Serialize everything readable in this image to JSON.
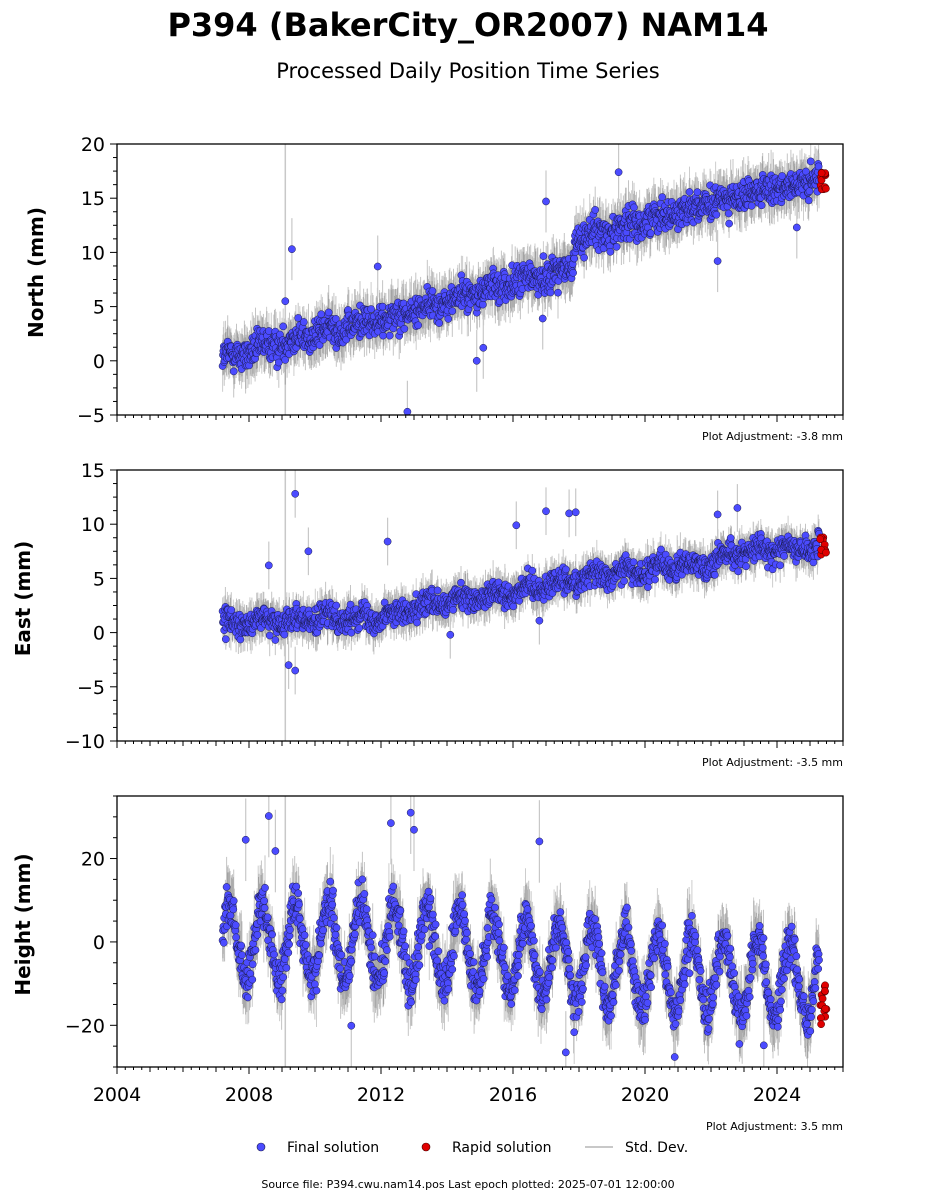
{
  "header": {
    "title": "P394 (BakerCity_OR2007) NAM14",
    "subtitle": "Processed Daily Position Time Series"
  },
  "footer": {
    "source": "Source file: P394.cwu.nam14.pos  Last epoch plotted: 2025-07-01 12:00:00"
  },
  "legend": {
    "final_label": "Final solution",
    "rapid_label": "Rapid solution",
    "std_label": "Std. Dev."
  },
  "colors": {
    "final": "#4b4bff",
    "final_edge": "#1a1a4a",
    "rapid": "#e00000",
    "std": "#c8c8c8",
    "std_dark": "#555555",
    "axis": "#000000"
  },
  "chart_data": [
    {
      "type": "scatter",
      "ylabel": "North (mm)",
      "adjustment": "Plot Adjustment: -3.8 mm",
      "xlim": [
        2004,
        2026
      ],
      "ylim": [
        -5,
        20
      ],
      "yticks": [
        -5,
        0,
        5,
        10,
        15,
        20
      ],
      "xticks": [
        2004,
        2008,
        2012,
        2016,
        2020,
        2024
      ],
      "show_xtick_labels": false,
      "series": [
        {
          "name": "Final solution",
          "trend": [
            [
              2007.2,
              0.2
            ],
            [
              2010.0,
              2.5
            ],
            [
              2012.0,
              3.8
            ],
            [
              2014.0,
              5.5
            ],
            [
              2016.0,
              7.2
            ],
            [
              2017.8,
              8.5
            ],
            [
              2017.9,
              11.2
            ],
            [
              2019.5,
              12.5
            ],
            [
              2021.0,
              13.8
            ],
            [
              2023.0,
              15.2
            ],
            [
              2025.4,
              16.8
            ]
          ],
          "scatter_sd": 1.3,
          "season_amp": 0.3,
          "outliers": [
            [
              2009.3,
              10.3
            ],
            [
              2012.8,
              -4.7
            ],
            [
              2017.0,
              14.7
            ],
            [
              2019.2,
              17.4
            ],
            [
              2009.1,
              5.5
            ],
            [
              2015.1,
              1.2
            ],
            [
              2022.2,
              9.2
            ],
            [
              2024.6,
              12.3
            ],
            [
              2014.9,
              0.0
            ],
            [
              2011.9,
              8.7
            ],
            [
              2016.9,
              3.9
            ]
          ]
        },
        {
          "name": "Rapid solution",
          "x_range": [
            2025.3,
            2025.5
          ],
          "y_range": [
            15.8,
            17.4
          ]
        }
      ]
    },
    {
      "type": "scatter",
      "ylabel": "East (mm)",
      "adjustment": "Plot Adjustment: -3.5 mm",
      "xlim": [
        2004,
        2026
      ],
      "ylim": [
        -10,
        15
      ],
      "yticks": [
        -10,
        -5,
        0,
        5,
        10,
        15
      ],
      "xticks": [
        2004,
        2008,
        2012,
        2016,
        2020,
        2024
      ],
      "show_xtick_labels": false,
      "series": [
        {
          "name": "Final solution",
          "trend": [
            [
              2007.2,
              0.7
            ],
            [
              2009.0,
              1.2
            ],
            [
              2012.0,
              1.5
            ],
            [
              2014.0,
              2.8
            ],
            [
              2016.0,
              3.8
            ],
            [
              2018.0,
              5.0
            ],
            [
              2020.0,
              5.8
            ],
            [
              2022.0,
              6.5
            ],
            [
              2023.0,
              7.5
            ],
            [
              2025.4,
              8.0
            ]
          ],
          "scatter_sd": 1.0,
          "season_amp": 0.4,
          "outliers": [
            [
              2009.4,
              12.8
            ],
            [
              2009.4,
              -3.5
            ],
            [
              2009.2,
              -3.0
            ],
            [
              2017.0,
              11.2
            ],
            [
              2017.7,
              11.0
            ],
            [
              2017.9,
              11.1
            ],
            [
              2012.2,
              8.4
            ],
            [
              2016.1,
              9.9
            ],
            [
              2022.2,
              10.9
            ],
            [
              2022.8,
              11.5
            ],
            [
              2016.8,
              1.1
            ],
            [
              2014.1,
              -0.2
            ],
            [
              2009.8,
              7.5
            ],
            [
              2008.6,
              6.2
            ]
          ]
        },
        {
          "name": "Rapid solution",
          "x_range": [
            2025.3,
            2025.5
          ],
          "y_range": [
            7.2,
            8.8
          ]
        }
      ]
    },
    {
      "type": "scatter",
      "ylabel": "Height (mm)",
      "adjustment": "Plot Adjustment: 3.5 mm",
      "xlim": [
        2004,
        2026
      ],
      "ylim": [
        -30,
        35
      ],
      "yticks": [
        -20,
        0,
        20
      ],
      "xticks": [
        2004,
        2008,
        2012,
        2016,
        2020,
        2024
      ],
      "xtick_labels": [
        "2004",
        "2008",
        "2012",
        "2016",
        "2020",
        "2024"
      ],
      "show_xtick_labels": true,
      "series": [
        {
          "name": "Final solution",
          "trend": [
            [
              2007.2,
              0.0
            ],
            [
              2012.0,
              0.0
            ],
            [
              2016.0,
              -3.0
            ],
            [
              2020.0,
              -7.0
            ],
            [
              2025.4,
              -10.0
            ]
          ],
          "scatter_sd": 4.5,
          "season_amp": 9.0,
          "outliers": [
            [
              2008.6,
              30.2
            ],
            [
              2012.3,
              28.5
            ],
            [
              2012.9,
              31.0
            ],
            [
              2013.0,
              26.9
            ],
            [
              2008.8,
              21.8
            ],
            [
              2007.9,
              24.5
            ],
            [
              2016.8,
              24.1
            ],
            [
              2020.9,
              -27.6
            ],
            [
              2017.6,
              -26.5
            ],
            [
              2023.6,
              -24.8
            ],
            [
              2011.1,
              -20.1
            ]
          ]
        },
        {
          "name": "Rapid solution",
          "x_range": [
            2025.3,
            2025.5
          ],
          "y_range": [
            -20.0,
            -10.0
          ]
        }
      ]
    }
  ]
}
